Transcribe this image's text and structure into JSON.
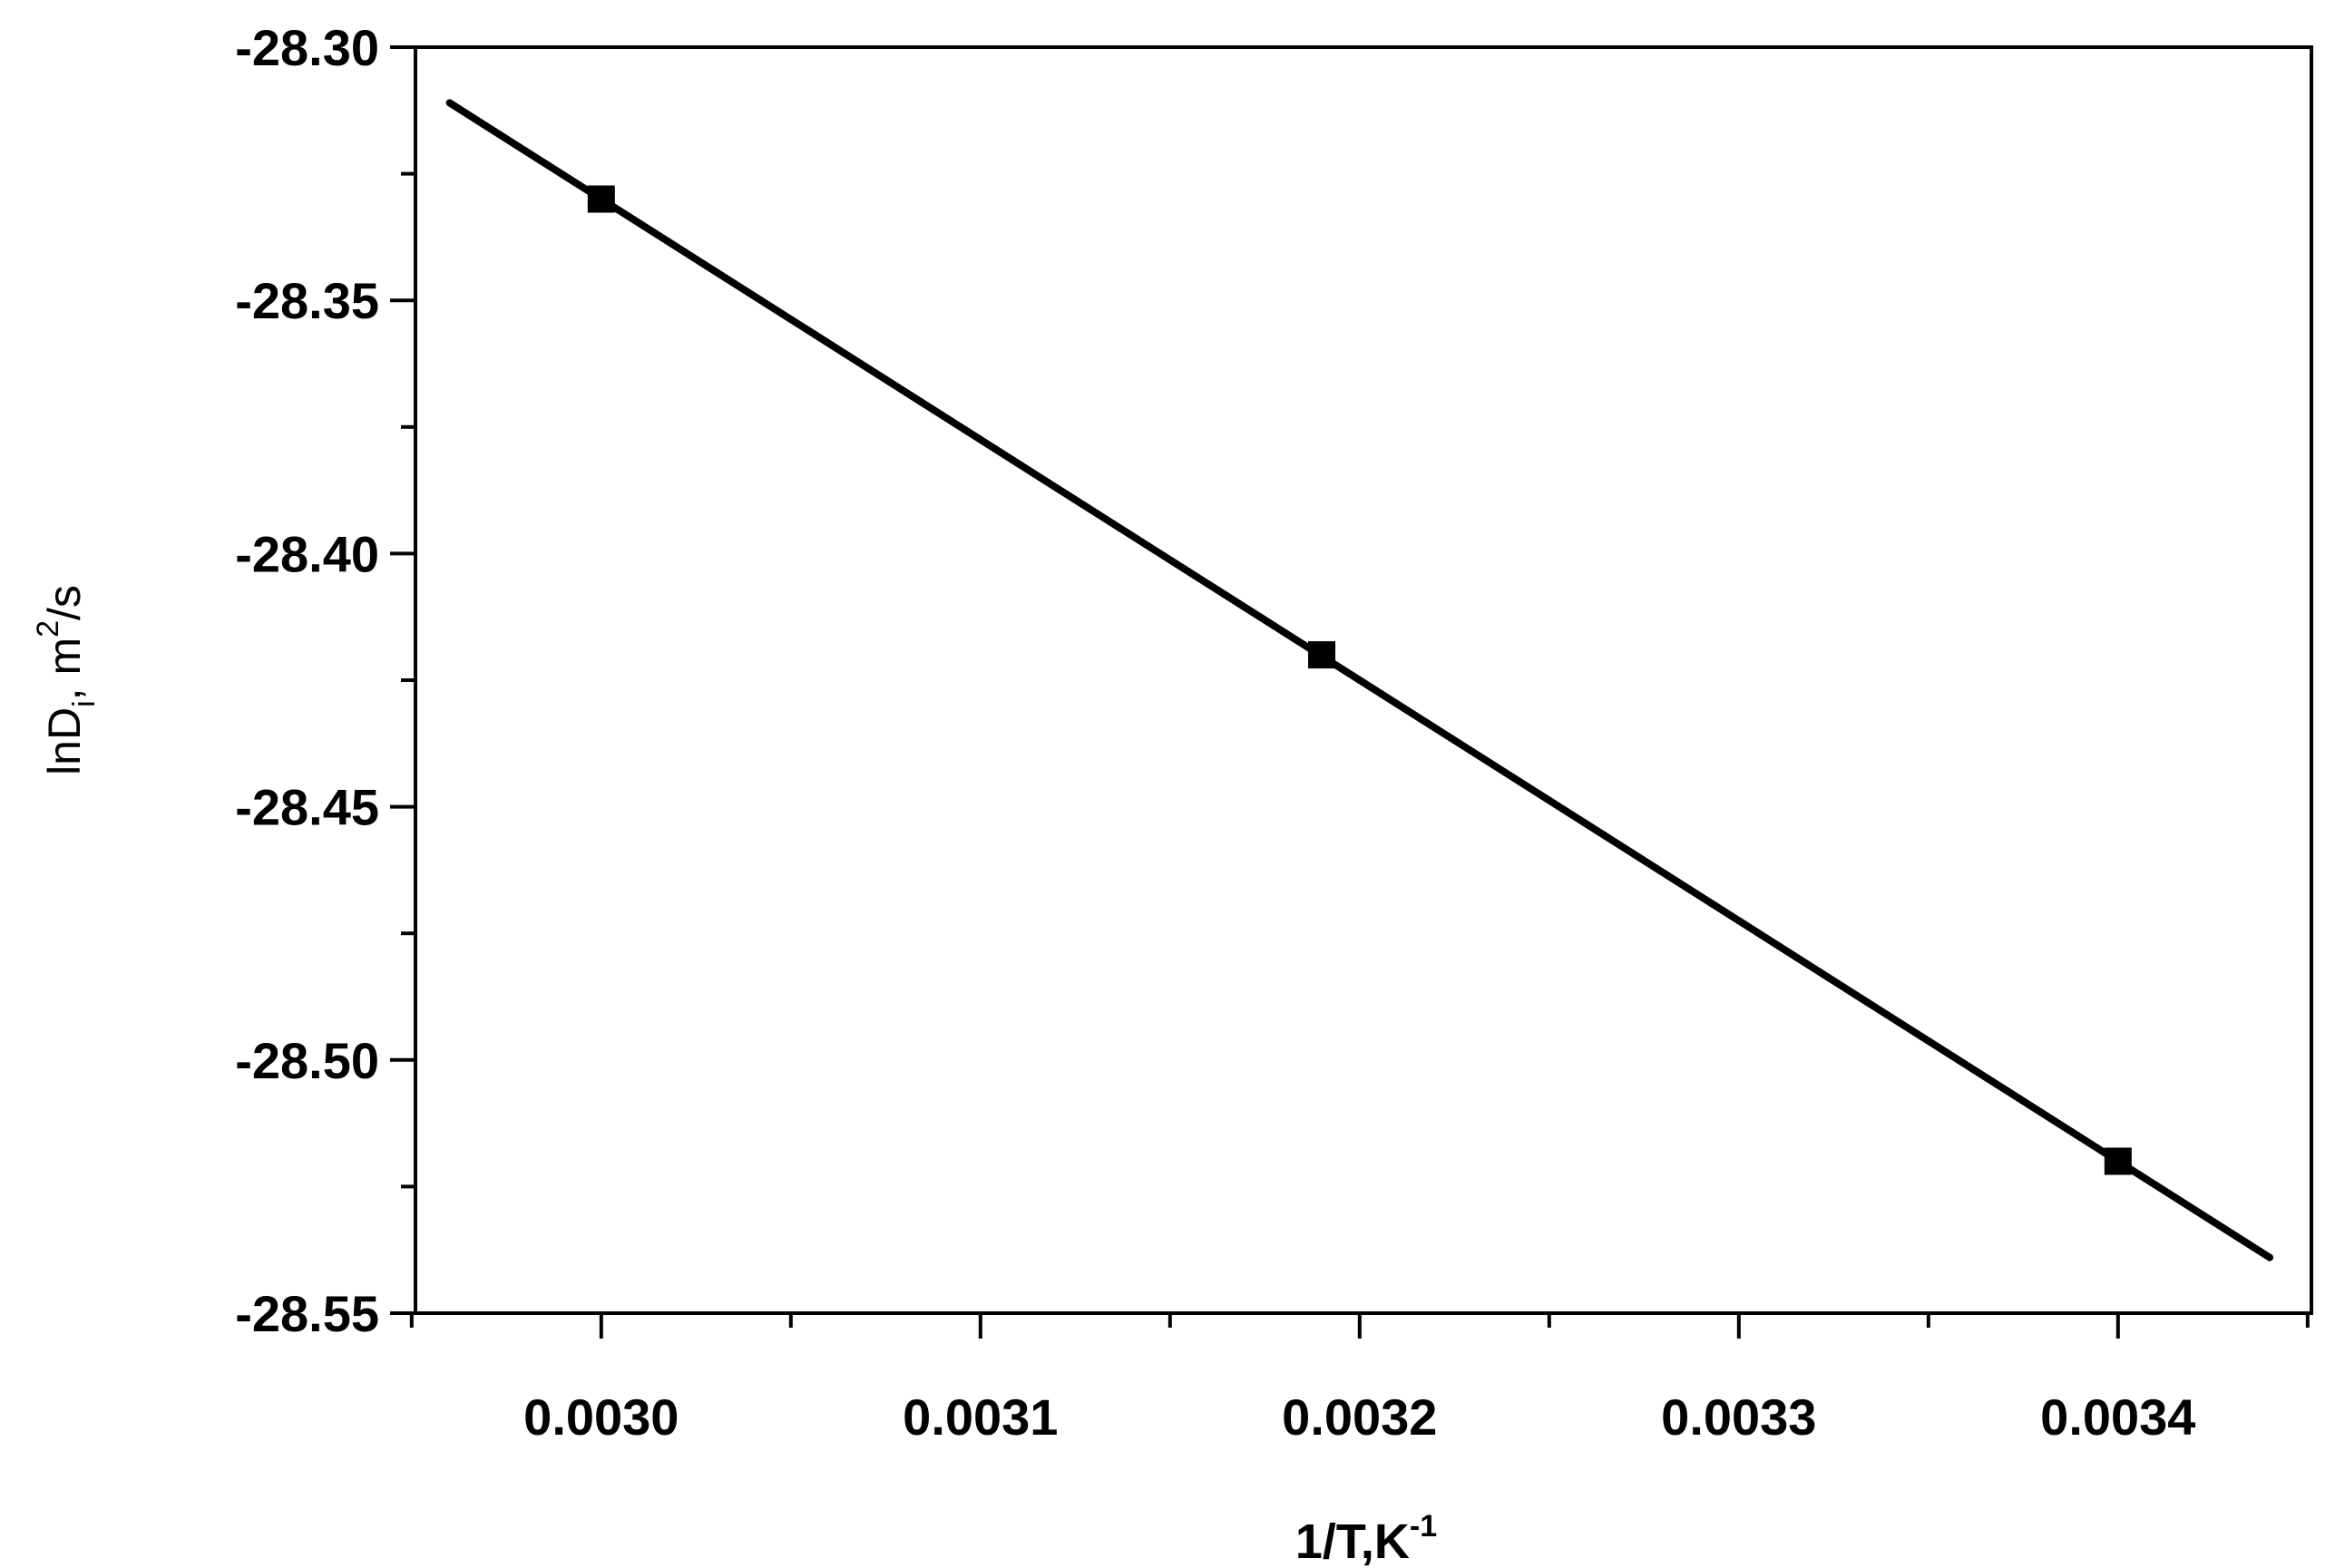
{
  "chart_data": {
    "type": "line",
    "title": "",
    "xlabel": {
      "text": "1/T,K",
      "sup": "-1"
    },
    "ylabel": {
      "main": "lnD",
      "sub": "i",
      "mid": ", m",
      "sup": "2",
      "tail": "/s"
    },
    "xlim": [
      0.002951,
      0.003451
    ],
    "ylim": [
      -28.55,
      -28.3
    ],
    "x_ticks": [
      0.003,
      0.0031,
      0.0032,
      0.0033,
      0.0034
    ],
    "x_tick_labels": [
      "0.0030",
      "0.0031",
      "0.0032",
      "0.0033",
      "0.0034"
    ],
    "x_minor_ticks": [
      0.00295,
      0.00305,
      0.00315,
      0.00325,
      0.00335,
      0.00345
    ],
    "y_ticks": [
      -28.3,
      -28.35,
      -28.4,
      -28.45,
      -28.5,
      -28.55
    ],
    "y_tick_labels": [
      "-28.30",
      "-28.35",
      "-28.40",
      "-28.45",
      "-28.50",
      "-28.55"
    ],
    "y_minor_ticks": [
      -28.325,
      -28.375,
      -28.425,
      -28.475,
      -28.525
    ],
    "grid": false,
    "series": [
      {
        "points": [
          {
            "x": 0.003,
            "y": -28.33
          },
          {
            "x": 0.00319,
            "y": -28.42
          },
          {
            "x": 0.0034,
            "y": -28.52
          }
        ],
        "fit_line": [
          {
            "x": 0.00296,
            "y": -28.311
          },
          {
            "x": 0.00344,
            "y": -28.539
          }
        ],
        "color": "#000000",
        "marker": "square"
      }
    ]
  }
}
